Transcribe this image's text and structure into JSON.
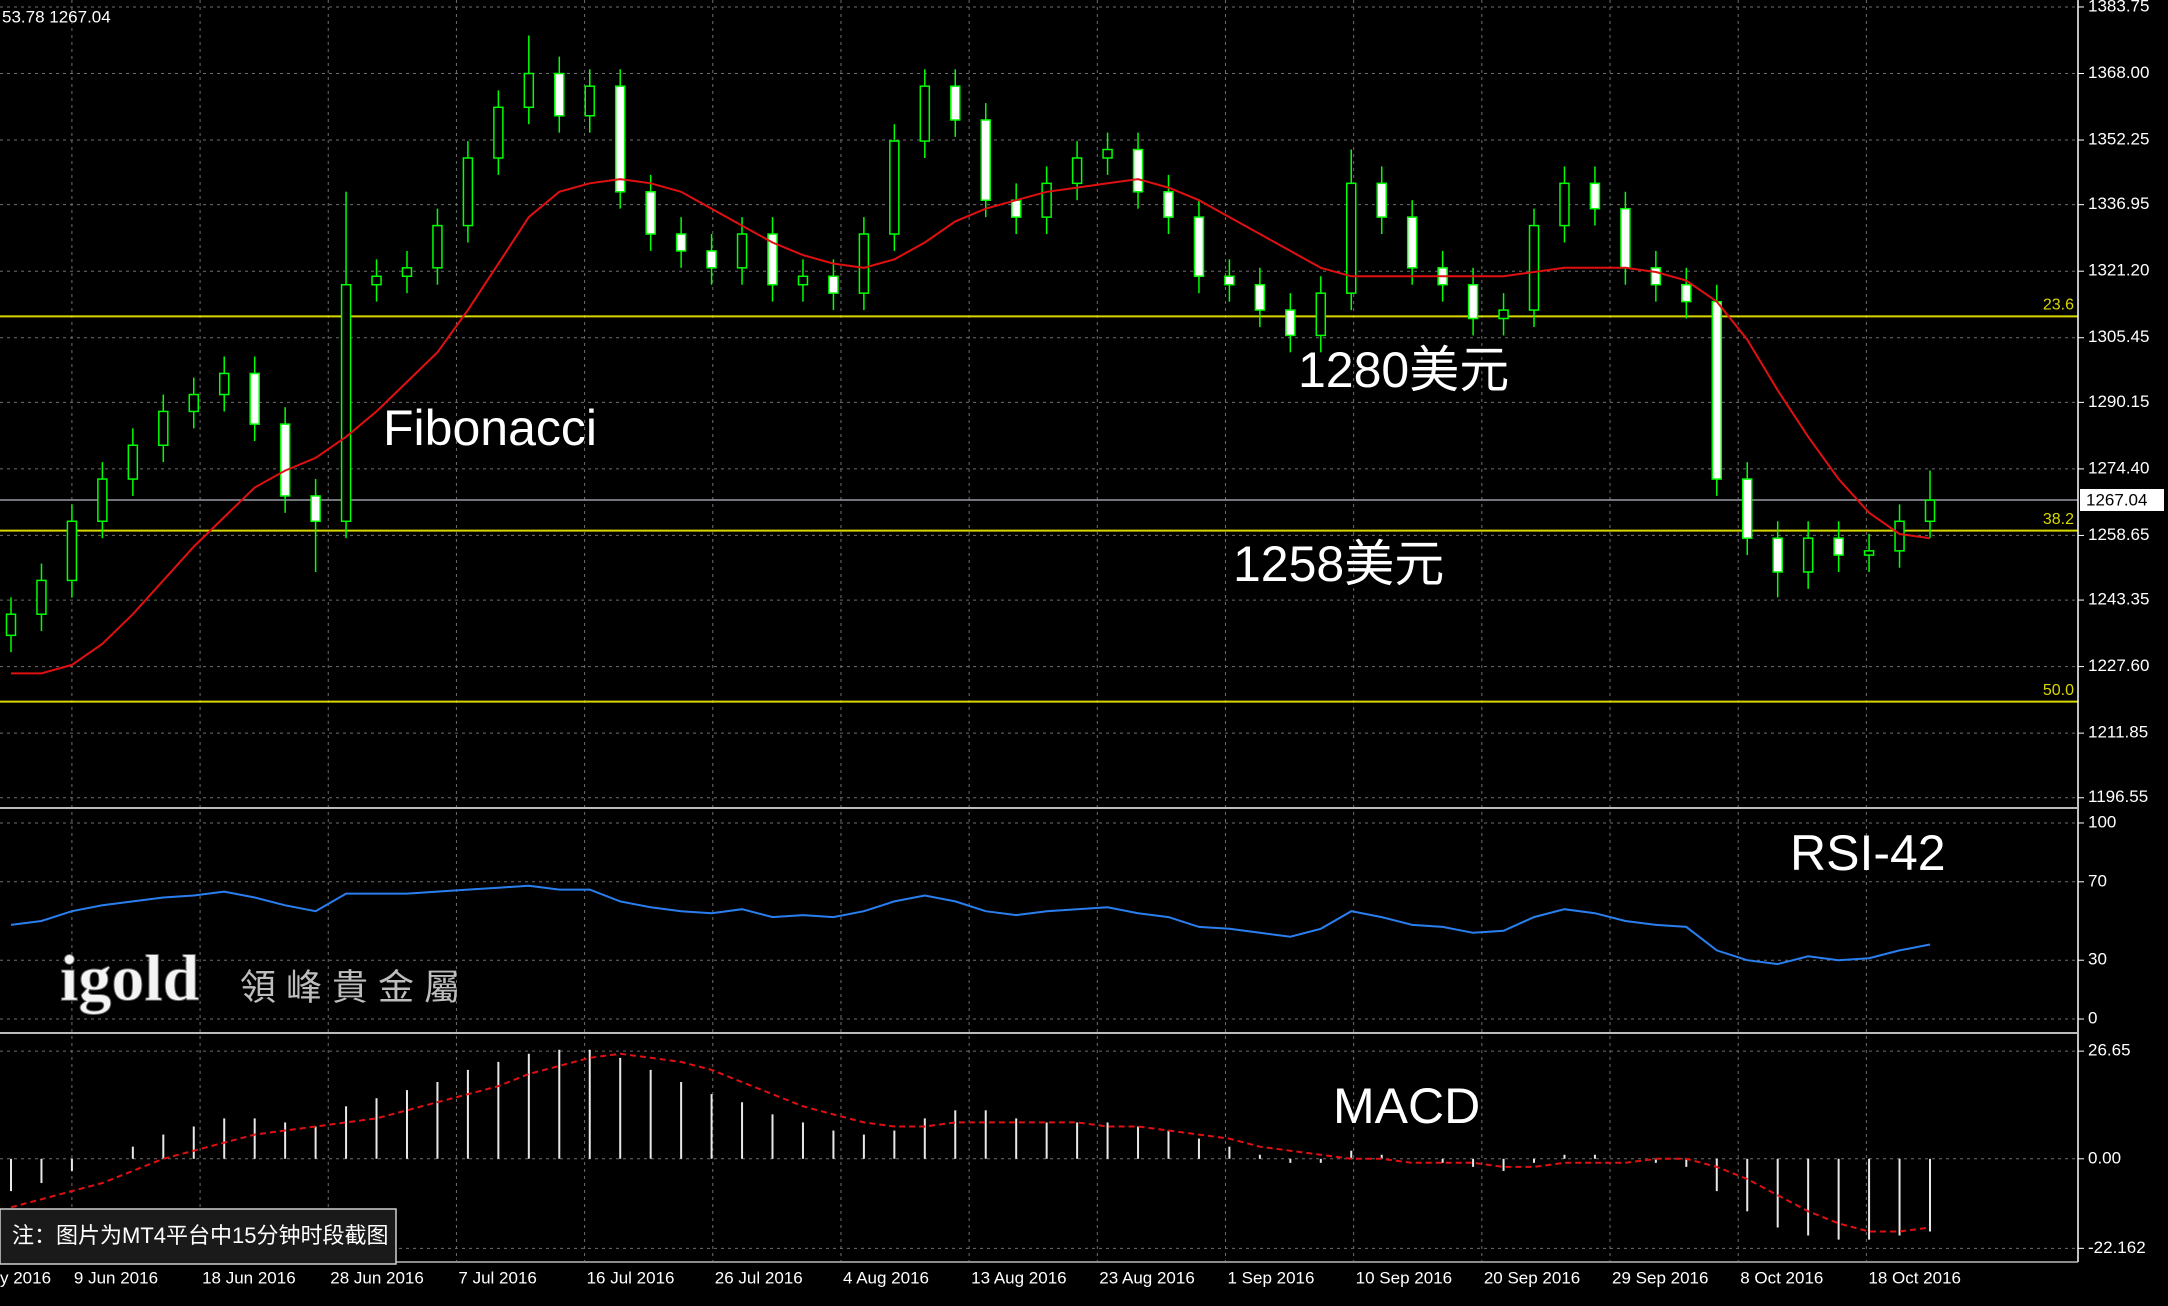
{
  "chart_data": {
    "type": "candlestick",
    "info_text": "53.78 1267.04",
    "ylim": [
      1194.6,
      1385.4
    ],
    "yticks": [
      1383.75,
      {
        "value": 1368,
        "label": "1368.00"
      },
      1352.25,
      1336.95,
      {
        "value": 1321.2,
        "label": "1321.20"
      },
      1305.45,
      1290.15,
      {
        "value": 1274.4,
        "label": "1274.40"
      },
      1258.65,
      1243.35,
      {
        "value": 1227.6,
        "label": "1227.60"
      },
      1211.85,
      1196.55
    ],
    "current_price": 1267.04,
    "grid": true,
    "candle_colors": {
      "wick": "#00ff00",
      "up_fill": "#000000",
      "down_fill": "#ffffff"
    },
    "open": [
      1235,
      1240,
      1248,
      1262,
      1272,
      1280,
      1288,
      1292,
      1297,
      1285,
      1268,
      1262,
      1318,
      1320,
      1322,
      1332,
      1348,
      1360,
      1368,
      1358,
      1365,
      1340,
      1330,
      1326,
      1322,
      1330,
      1318,
      1320,
      1316,
      1330,
      1352,
      1365,
      1357,
      1338,
      1334,
      1342,
      1348,
      1350,
      1340,
      1334,
      1320,
      1318,
      1312,
      1306,
      1316,
      1342,
      1334,
      1322,
      1318,
      1310,
      1312,
      1332,
      1342,
      1336,
      1322,
      1318,
      1314,
      1272,
      1258,
      1250,
      1258,
      1254,
      1255,
      1262
    ],
    "high": [
      1244,
      1252,
      1266,
      1276,
      1284,
      1292,
      1296,
      1301,
      1301,
      1289,
      1272,
      1340,
      1324,
      1326,
      1336,
      1352,
      1364,
      1377,
      1372,
      1369,
      1369,
      1344,
      1334,
      1330,
      1334,
      1334,
      1324,
      1324,
      1334,
      1356,
      1369,
      1369,
      1361,
      1342,
      1346,
      1352,
      1354,
      1354,
      1344,
      1338,
      1324,
      1322,
      1316,
      1320,
      1350,
      1346,
      1338,
      1326,
      1322,
      1316,
      1336,
      1346,
      1346,
      1340,
      1326,
      1322,
      1318,
      1276,
      1262,
      1262,
      1262,
      1259,
      1266,
      1274
    ],
    "low": [
      1231,
      1236,
      1244,
      1258,
      1268,
      1276,
      1284,
      1288,
      1281,
      1264,
      1250,
      1258,
      1314,
      1316,
      1318,
      1328,
      1344,
      1356,
      1354,
      1354,
      1336,
      1326,
      1322,
      1318,
      1318,
      1314,
      1314,
      1312,
      1312,
      1326,
      1348,
      1353,
      1334,
      1330,
      1330,
      1338,
      1344,
      1336,
      1330,
      1316,
      1314,
      1308,
      1302,
      1302,
      1312,
      1330,
      1318,
      1314,
      1306,
      1306,
      1308,
      1328,
      1332,
      1318,
      1314,
      1310,
      1268,
      1254,
      1244,
      1246,
      1250,
      1250,
      1251,
      1258
    ],
    "close": [
      1240,
      1248,
      1262,
      1272,
      1280,
      1288,
      1292,
      1297,
      1285,
      1268,
      1262,
      1318,
      1320,
      1322,
      1332,
      1348,
      1360,
      1368,
      1358,
      1365,
      1340,
      1330,
      1326,
      1322,
      1330,
      1318,
      1320,
      1316,
      1330,
      1352,
      1365,
      1357,
      1338,
      1334,
      1342,
      1348,
      1350,
      1340,
      1334,
      1320,
      1318,
      1312,
      1306,
      1316,
      1342,
      1334,
      1322,
      1318,
      1310,
      1312,
      1332,
      1342,
      1336,
      1322,
      1318,
      1314,
      1272,
      1258,
      1250,
      1258,
      1254,
      1255,
      1262,
      1267
    ],
    "moving_average": {
      "color": "#e01010",
      "values": [
        1226,
        1226,
        1228,
        1233,
        1240,
        1248,
        1256,
        1263,
        1270,
        1274,
        1277,
        1282,
        1288,
        1295,
        1302,
        1312,
        1323,
        1334,
        1340,
        1342,
        1343,
        1342,
        1340,
        1336,
        1332,
        1328,
        1325,
        1323,
        1322,
        1324,
        1328,
        1333,
        1336,
        1338,
        1340,
        1341,
        1342,
        1343,
        1341,
        1338,
        1334,
        1330,
        1326,
        1322,
        1320,
        1320,
        1320,
        1320,
        1320,
        1320,
        1321,
        1322,
        1322,
        1322,
        1321,
        1319,
        1314,
        1305,
        1293,
        1282,
        1272,
        1264,
        1259,
        1258
      ]
    },
    "fib_levels": [
      {
        "name": "23.6",
        "price": 1310.5
      },
      {
        "name": "38.2",
        "price": 1259.8
      },
      {
        "name": "50.0",
        "price": 1219.3
      }
    ],
    "fib_color": "#d8d800",
    "xlabels": [
      "y 2016",
      "9 Jun 2016",
      "18 Jun 2016",
      "28 Jun 2016",
      "7 Jul 2016",
      "16 Jul 2016",
      "26 Jul 2016",
      "4 Aug 2016",
      "13 Aug 2016",
      "23 Aug 2016",
      "1 Sep 2016",
      "10 Sep 2016",
      "20 Sep 2016",
      "29 Sep 2016",
      "8 Oct 2016",
      "18 Oct 2016"
    ],
    "annotations": [
      "Fibonacci",
      "1280美元",
      "1258美元"
    ],
    "rsi": {
      "title": "RSI-42",
      "color": "#2a7ff0",
      "ylim": [
        -5.6,
        105.6
      ],
      "yticks": [
        100,
        70,
        30,
        0
      ],
      "values": [
        48,
        50,
        55,
        58,
        60,
        62,
        63,
        65,
        62,
        58,
        55,
        64,
        64,
        64,
        65,
        66,
        67,
        68,
        66,
        66,
        60,
        57,
        55,
        54,
        56,
        52,
        53,
        52,
        55,
        60,
        63,
        60,
        55,
        53,
        55,
        56,
        57,
        54,
        52,
        47,
        46,
        44,
        42,
        46,
        55,
        52,
        48,
        47,
        44,
        45,
        52,
        56,
        54,
        50,
        48,
        47,
        35,
        30,
        28,
        32,
        30,
        31,
        35,
        38
      ]
    },
    "macd": {
      "title": "MACD",
      "hist_color": "#e8e8e8",
      "signal_color": "#e01010",
      "ylim": [
        -25.3,
        30.4
      ],
      "yticks": [
        26.65,
        {
          "value": 0,
          "label": "0.00"
        },
        -22.162
      ],
      "histogram": [
        -8,
        -6,
        -3,
        0,
        3,
        6,
        8,
        10,
        10,
        9,
        8,
        13,
        15,
        17,
        19,
        22,
        24,
        26,
        27,
        27,
        25,
        22,
        19,
        16,
        14,
        11,
        9,
        7,
        6,
        7,
        10,
        12,
        12,
        10,
        9,
        9,
        9,
        8,
        7,
        5,
        3,
        1,
        -1,
        -1,
        2,
        1,
        0,
        -1,
        -2,
        -3,
        -1,
        1,
        1,
        0,
        -1,
        -2,
        -8,
        -13,
        -17,
        -19,
        -20,
        -20,
        -19,
        -18
      ],
      "signal": [
        -12,
        -10,
        -8,
        -6,
        -3,
        0,
        2,
        4,
        6,
        7,
        8,
        9,
        10,
        12,
        14,
        16,
        18,
        21,
        23,
        25,
        26,
        25,
        24,
        22,
        19,
        16,
        13,
        11,
        9,
        8,
        8,
        9,
        9,
        9,
        9,
        9,
        8,
        8,
        7,
        6,
        5,
        3,
        2,
        1,
        0,
        0,
        -1,
        -1,
        -1,
        -2,
        -2,
        -1,
        -1,
        -1,
        0,
        0,
        -2,
        -5,
        -9,
        -13,
        -16,
        -18,
        -18,
        -17
      ]
    },
    "logo": "igold",
    "logo_sub": "領 峰 貴 金 屬",
    "note": "注：图片为MT4平台中15分钟时段截图"
  }
}
